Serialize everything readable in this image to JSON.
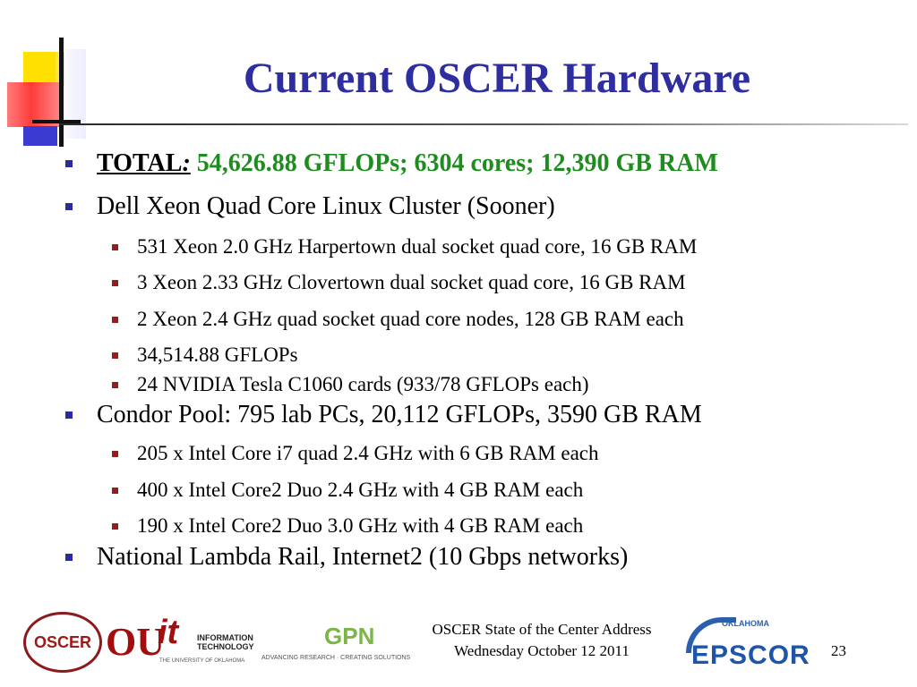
{
  "slide": {
    "title": "Current OSCER Hardware",
    "page_number": "23"
  },
  "bullets": [
    {
      "label": "TOTAL",
      "label_colon": ":",
      "value": " 54,626.88 GFLOPs; 6304 cores; 12,390 GB RAM"
    },
    {
      "text": "Dell Xeon Quad Core Linux Cluster (Sooner)",
      "children": [
        "531 Xeon 2.0 GHz Harpertown dual socket quad core, 16 GB RAM",
        "3 Xeon 2.33 GHz Clovertown dual socket quad core, 16 GB RAM",
        "2 Xeon 2.4 GHz quad socket quad core nodes, 128 GB RAM each",
        "34,514.88 GFLOPs",
        "24 NVIDIA Tesla C1060 cards (933/78 GFLOPs each)"
      ]
    },
    {
      "text": "Condor Pool: 795 lab PCs, 20,112 GFLOPs, 3590 GB RAM",
      "children": [
        "205 x Intel Core i7 quad 2.4 GHz with 6 GB RAM each",
        "400 x Intel Core2 Duo 2.4 GHz with 4 GB RAM each",
        "190 x Intel Core2 Duo 3.0 GHz with 4 GB RAM each"
      ]
    },
    {
      "text": "National Lambda Rail, Internet2 (10 Gbps networks)"
    }
  ],
  "footer": {
    "line1": "OSCER State of the Center Address",
    "line2": "Wednesday October 12 2011"
  },
  "logos": {
    "oscer": "OSCER",
    "ou": "OU",
    "it_mark": "it",
    "it_text_1": "INFORMATION",
    "it_text_2": "TECHNOLOGY",
    "it_sub": "THE UNIVERSITY OF OKLAHOMA",
    "gpn": "GPN",
    "gpn_tagline": "ADVANCING RESEARCH · CREATING SOLUTIONS",
    "epscor_state": "OKLAHOMA",
    "epscor": "EPSCOR"
  },
  "colors": {
    "title": "#2e2ea0",
    "total_value": "#1e8c1e",
    "bullet_marker_l1": "#2b2b9a",
    "bullet_marker_l2": "#9a1b1b"
  }
}
